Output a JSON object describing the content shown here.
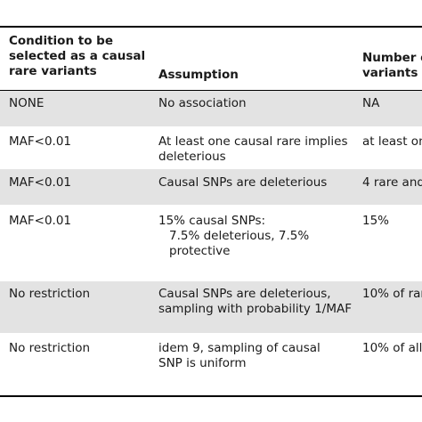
{
  "table": {
    "headers": {
      "col1_lines": [
        "Condition to be",
        "selected as a causal",
        "rare variants"
      ],
      "col2": "Assumption",
      "col3_lines": [
        "Number o",
        "variants"
      ]
    },
    "rows": [
      {
        "shaded": true,
        "condition": [
          "NONE"
        ],
        "assumption": [
          "No association"
        ],
        "number": [
          "NA"
        ]
      },
      {
        "shaded": false,
        "condition": [
          "MAF<0.01"
        ],
        "assumption": [
          "At least one causal rare implies",
          "deleterious"
        ],
        "number": [
          "at least on"
        ]
      },
      {
        "shaded": true,
        "condition": [
          "MAF<0.01"
        ],
        "assumption": [
          "Causal SNPs are deleterious"
        ],
        "number": [
          "4 rare and"
        ]
      },
      {
        "shaded": false,
        "condition": [
          "MAF<0.01"
        ],
        "assumption": [
          "15% causal SNPs:",
          "7.5% deleterious, 7.5%",
          "protective"
        ],
        "number": [
          "15%"
        ]
      },
      {
        "shaded": true,
        "condition": [
          "No restriction"
        ],
        "assumption": [
          "Causal SNPs are deleterious,",
          "sampling with probability 1/MAF"
        ],
        "number": [
          "10% of rar"
        ]
      },
      {
        "shaded": false,
        "condition": [
          "No restriction"
        ],
        "assumption": [
          "idem 9, sampling of causal",
          "SNP is uniform"
        ],
        "number": [
          "10% of all"
        ]
      }
    ]
  }
}
